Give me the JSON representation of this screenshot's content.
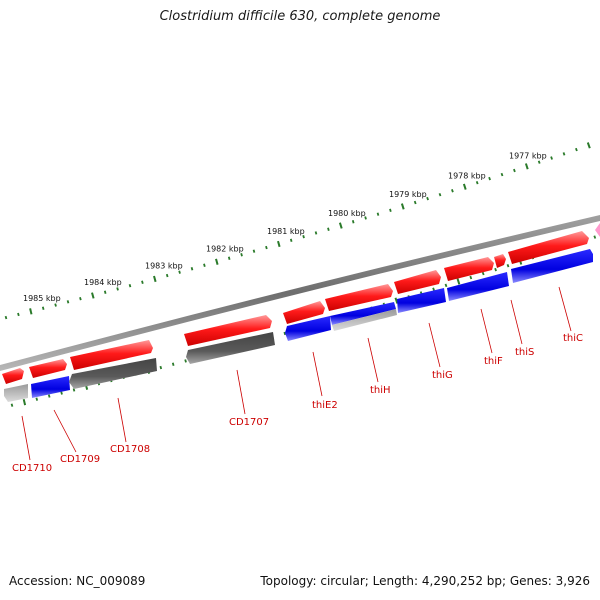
{
  "title": "Clostridium difficile 630, complete genome",
  "footer": {
    "accession": "Accession: NC_009089",
    "stats": "Topology: circular; Length: 4,290,252 bp; Genes: 3,926"
  },
  "colors": {
    "forward_gene": "#ff0000",
    "reverse_gene": "#0000ee",
    "gray_gene": "#555555",
    "light_gray_gene": "#aaaaaa",
    "backbone": "#7a7a7a",
    "tick": "#2a7a2a",
    "label": "#cc0000",
    "pink_gene": "#ff99cc"
  },
  "kbp_labels": [
    "1985 kbp",
    "1984 kbp",
    "1983 kbp",
    "1982 kbp",
    "1981 kbp",
    "1980 kbp",
    "1979 kbp",
    "1978 kbp",
    "1977 kbp"
  ],
  "gene_labels": [
    "CD1710",
    "CD1709",
    "CD1708",
    "CD1707",
    "thiE2",
    "thiH",
    "thiG",
    "thiF",
    "thiS",
    "thiC"
  ]
}
